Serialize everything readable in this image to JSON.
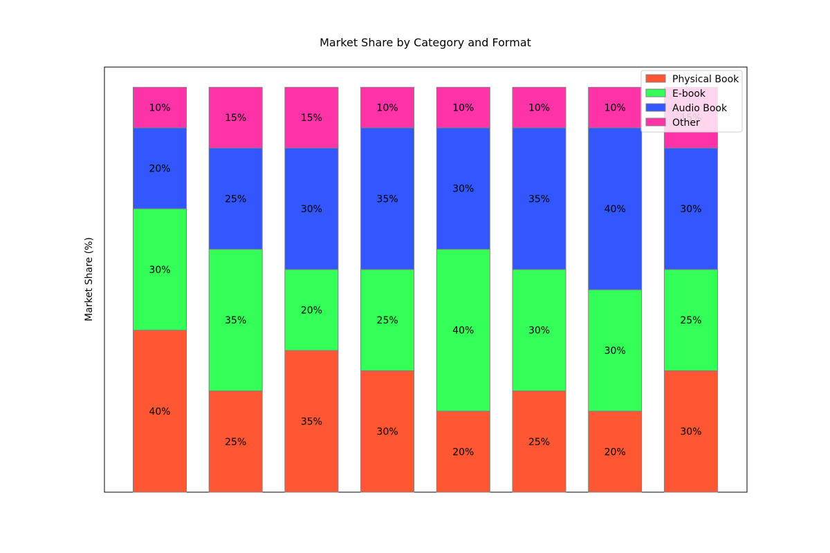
{
  "chart_data": {
    "type": "bar",
    "stacked": true,
    "title": "Market Share by Category and Format",
    "xlabel": "",
    "ylabel": "Market Share (%)",
    "ylim": [
      0,
      105
    ],
    "grid": false,
    "legend_position": "top-right",
    "categories": [
      "",
      "",
      "",
      "",
      "",
      "",
      "",
      ""
    ],
    "series": [
      {
        "name": "Physical Book",
        "color": "#ff5733",
        "values": [
          40,
          25,
          35,
          30,
          20,
          25,
          20,
          30
        ]
      },
      {
        "name": "E-book",
        "color": "#33ff57",
        "values": [
          30,
          35,
          20,
          25,
          40,
          30,
          30,
          25
        ]
      },
      {
        "name": "Audio Book",
        "color": "#3357ff",
        "values": [
          20,
          25,
          30,
          35,
          30,
          35,
          40,
          30
        ]
      },
      {
        "name": "Other",
        "color": "#ff33a8",
        "values": [
          10,
          15,
          15,
          10,
          10,
          10,
          10,
          15
        ]
      }
    ],
    "value_label_suffix": "%"
  }
}
